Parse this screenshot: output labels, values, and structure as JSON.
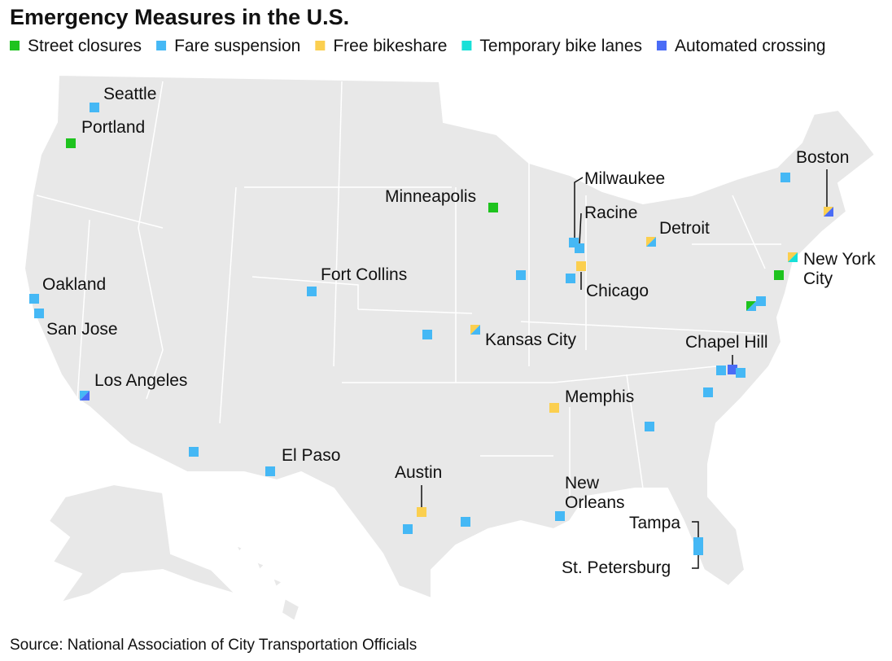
{
  "title": "Emergency Measures in the U.S.",
  "legend": [
    {
      "label": "Street closures",
      "color": "#1ec31e"
    },
    {
      "label": "Fare suspension",
      "color": "#45b8f5"
    },
    {
      "label": "Free bikeshare",
      "color": "#fbcf4f"
    },
    {
      "label": "Temporary bike lanes",
      "color": "#17e0d8"
    },
    {
      "label": "Automated crossing",
      "color": "#4a6cf6"
    }
  ],
  "cities": [
    [
      "Seattle"
    ],
    [
      "Portland"
    ],
    [
      "Oakland"
    ],
    [
      "San Jose"
    ],
    [
      "Los Angeles"
    ],
    [
      "Fort Collins"
    ],
    [
      "Minneapolis"
    ],
    [
      "Milwaukee"
    ],
    [
      "Racine"
    ],
    [
      "Detroit"
    ],
    [
      "Chicago"
    ],
    [
      "Kansas City"
    ],
    [
      "Memphis"
    ],
    [
      "Chapel Hill"
    ],
    [
      "Boston"
    ],
    [
      "New York",
      "City"
    ],
    [
      "El Paso"
    ],
    [
      "Austin"
    ],
    [
      "New",
      "Orleans"
    ],
    [
      "Tampa"
    ],
    [
      "St. Petersburg"
    ]
  ],
  "source": "Source: National Association of City Transportation Officials"
}
